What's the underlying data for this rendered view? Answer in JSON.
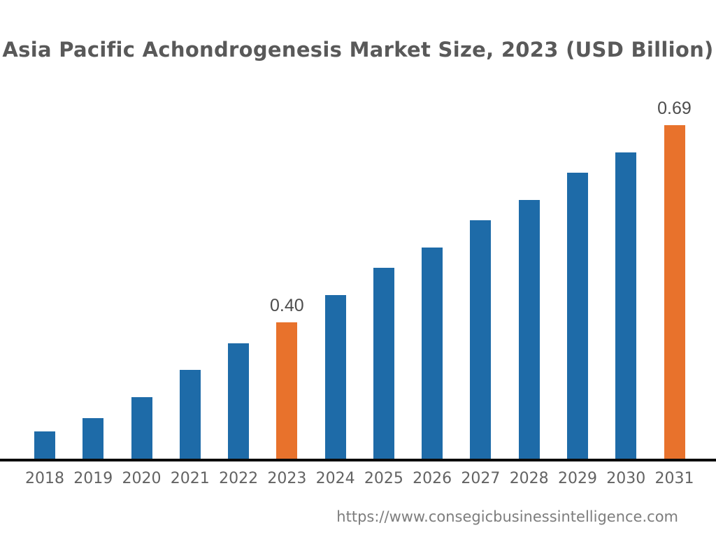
{
  "page": {
    "background": "#ffffff"
  },
  "header": {
    "title": "Asia Pacific Achondrogenesis Market Size, 2023 (USD Billion)"
  },
  "footer": {
    "source_url": "https://www.consegicbusinessintelligence.com"
  },
  "chart_data": {
    "type": "bar",
    "title": "Asia Pacific Achondrogenesis Market Size, 2023 (USD Billion)",
    "unit": "USD Billion",
    "categories": [
      "2018",
      "2019",
      "2020",
      "2021",
      "2022",
      "2023",
      "2024",
      "2025",
      "2026",
      "2027",
      "2028",
      "2029",
      "2030",
      "2031"
    ],
    "values": [
      0.24,
      0.26,
      0.29,
      0.33,
      0.37,
      0.4,
      0.44,
      0.48,
      0.51,
      0.55,
      0.58,
      0.62,
      0.65,
      0.69
    ],
    "data_labels": [
      "",
      "",
      "",
      "",
      "",
      "0.40",
      "",
      "",
      "",
      "",
      "",
      "",
      "",
      "0.69"
    ],
    "highlight_indices": [
      5,
      13
    ],
    "xlabel": "",
    "ylabel": "",
    "ylim": [
      0.2,
      0.74
    ],
    "grid": false,
    "legend": false,
    "colors": {
      "bar_default": "#1E6BA8",
      "bar_highlight": "#E8722C",
      "axis": "#0A0A0A",
      "title_text": "#595959",
      "tick_text": "#636363",
      "value_text": "#4D4D4D",
      "url_text": "#7D7D7D"
    }
  }
}
